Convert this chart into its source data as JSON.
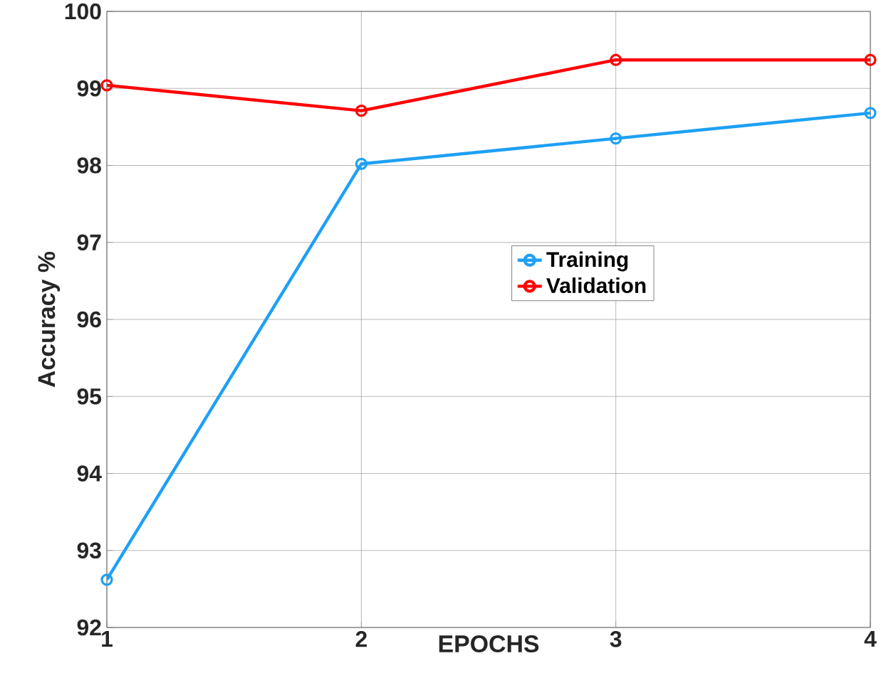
{
  "chart_data": {
    "type": "line",
    "xlabel": "EPOCHS",
    "ylabel": "Accuracy %",
    "x": [
      1,
      2,
      3,
      4
    ],
    "series": [
      {
        "name": "Training",
        "color": "#1ea0f5",
        "values": [
          92.62,
          98.02,
          98.35,
          98.68
        ]
      },
      {
        "name": "Validation",
        "color": "#ff0000",
        "values": [
          99.04,
          98.71,
          99.37,
          99.37
        ]
      }
    ],
    "xlim": [
      1,
      4
    ],
    "xticks": [
      1,
      2,
      3,
      4
    ],
    "ylim": [
      92,
      100
    ],
    "yticks": [
      92,
      93,
      94,
      95,
      96,
      97,
      98,
      99,
      100
    ],
    "grid": true,
    "legend": "right",
    "marker": "circle",
    "line_style": "solid"
  }
}
